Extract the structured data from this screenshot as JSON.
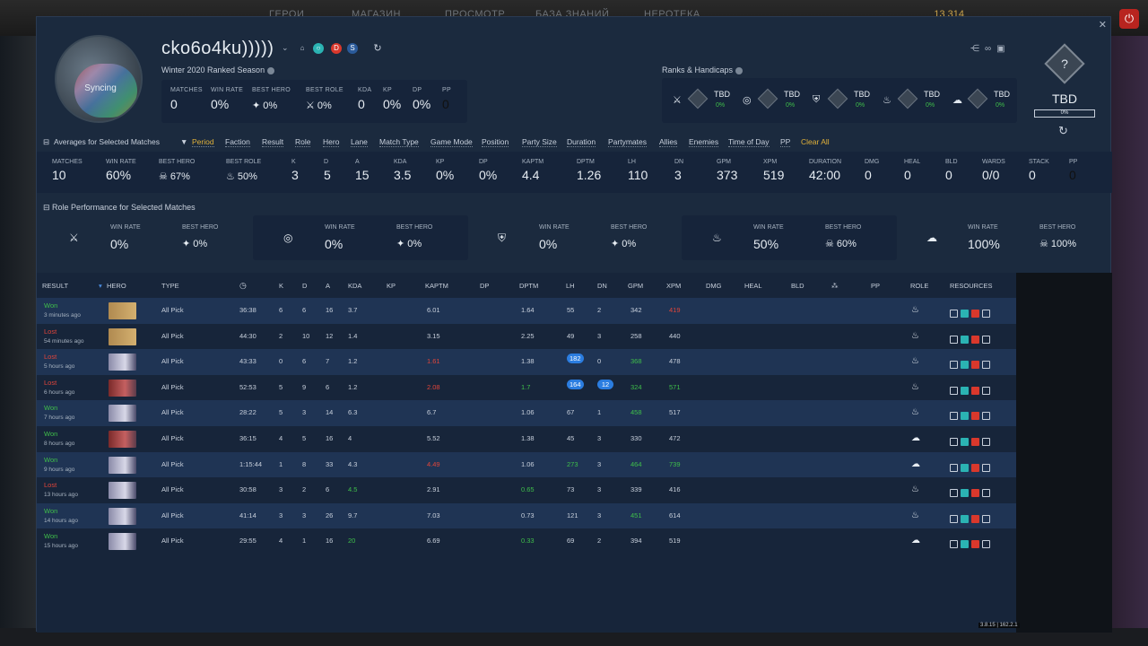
{
  "game_nav": {
    "items": [
      "ГЕРОИ",
      "МАГАЗИН",
      "ПРОСМОТР",
      "БАЗА ЗНАНИЙ",
      "НЕРОТЕКА"
    ],
    "gold": "13 314"
  },
  "profile": {
    "username": "cko6o4ku)))))",
    "avatar_label": "Syncing",
    "season": "Winter 2020 Ranked Season",
    "stats": [
      {
        "label": "MATCHES",
        "value": "0"
      },
      {
        "label": "WIN RATE",
        "value": "0%"
      },
      {
        "label": "BEST HERO",
        "value": "0%"
      },
      {
        "label": "BEST ROLE",
        "value": "0%"
      },
      {
        "label": "KDA",
        "value": "0"
      },
      {
        "label": "KP",
        "value": "0%"
      },
      {
        "label": "DP",
        "value": "0%"
      },
      {
        "label": "PP",
        "value": "0"
      }
    ]
  },
  "ranks": {
    "title": "Ranks & Handicaps",
    "items": [
      {
        "icon": "carry",
        "tier": "TBD",
        "pct": "0%"
      },
      {
        "icon": "mid",
        "tier": "TBD",
        "pct": "0%"
      },
      {
        "icon": "offlane",
        "tier": "TBD",
        "pct": "0%"
      },
      {
        "icon": "support",
        "tier": "TBD",
        "pct": "0%"
      },
      {
        "icon": "hard-support",
        "tier": "TBD",
        "pct": "0%"
      }
    ],
    "overall_tier": "TBD",
    "overall_pct": "0%"
  },
  "filters": {
    "section_title": "Averages for Selected Matches",
    "items": [
      "Period",
      "Faction",
      "Result",
      "Role",
      "Hero",
      "Lane",
      "Match Type",
      "Game Mode",
      "Position",
      "Party Size",
      "Duration",
      "Partymates",
      "Allies",
      "Enemies",
      "Time of Day",
      "PP"
    ],
    "clear_label": "Clear All"
  },
  "averages": [
    {
      "label": "MATCHES",
      "value": "10"
    },
    {
      "label": "WIN RATE",
      "value": "60%"
    },
    {
      "label": "BEST HERO",
      "value": "67%"
    },
    {
      "label": "BEST ROLE",
      "value": "50%"
    },
    {
      "label": "K",
      "value": "3"
    },
    {
      "label": "D",
      "value": "5"
    },
    {
      "label": "A",
      "value": "15"
    },
    {
      "label": "KDA",
      "value": "3.5"
    },
    {
      "label": "KP",
      "value": "0%"
    },
    {
      "label": "DP",
      "value": "0%"
    },
    {
      "label": "KAPTM",
      "value": "4.4"
    },
    {
      "label": "DPTM",
      "value": "1.26"
    },
    {
      "label": "LH",
      "value": "110"
    },
    {
      "label": "DN",
      "value": "3"
    },
    {
      "label": "GPM",
      "value": "373"
    },
    {
      "label": "XPM",
      "value": "519"
    },
    {
      "label": "DURATION",
      "value": "42:00"
    },
    {
      "label": "DMG",
      "value": "0"
    },
    {
      "label": "HEAL",
      "value": "0"
    },
    {
      "label": "BLD",
      "value": "0"
    },
    {
      "label": "WARDS",
      "value": "0/0"
    },
    {
      "label": "STACK",
      "value": "0"
    },
    {
      "label": "PP",
      "value": "0"
    }
  ],
  "role_performance": {
    "title": "Role Performance for Selected Matches",
    "win_rate_label": "WIN RATE",
    "best_hero_label": "BEST HERO",
    "roles": [
      {
        "win_rate": "0%",
        "best_hero": "0%"
      },
      {
        "win_rate": "0%",
        "best_hero": "0%"
      },
      {
        "win_rate": "0%",
        "best_hero": "0%"
      },
      {
        "win_rate": "50%",
        "best_hero": "60%"
      },
      {
        "win_rate": "100%",
        "best_hero": "100%"
      }
    ]
  },
  "table": {
    "headers": {
      "result": "RESULT",
      "hero": "HERO",
      "type": "TYPE",
      "k": "K",
      "d": "D",
      "a": "A",
      "kda": "KDA",
      "kp": "KP",
      "kaptm": "KAPTM",
      "dp": "DP",
      "dptm": "DPTM",
      "lh": "LH",
      "dn": "DN",
      "gpm": "GPM",
      "xpm": "XPM",
      "dmg": "DMG",
      "heal": "HEAL",
      "bld": "BLD",
      "pp": "PP",
      "role": "ROLE",
      "resources": "RESOURCES"
    },
    "rows": [
      {
        "result": "Won",
        "ago": "3 minutes ago",
        "type": "All Pick",
        "time": "36:38",
        "k": "6",
        "d": "6",
        "a": "16",
        "kda": "3.7",
        "kaptm": "6.01",
        "dptm": "1.64",
        "lh": "55",
        "dn": "2",
        "gpm": "342",
        "xpm": "419"
      },
      {
        "result": "Lost",
        "ago": "54 minutes ago",
        "type": "All Pick",
        "time": "44:30",
        "k": "2",
        "d": "10",
        "a": "12",
        "kda": "1.4",
        "kaptm": "3.15",
        "dptm": "2.25",
        "lh": "49",
        "dn": "3",
        "gpm": "258",
        "xpm": "440"
      },
      {
        "result": "Lost",
        "ago": "5 hours ago",
        "type": "All Pick",
        "time": "43:33",
        "k": "0",
        "d": "6",
        "a": "7",
        "kda": "1.2",
        "kaptm": "1.61",
        "dptm": "1.38",
        "lh": "182",
        "dn": "0",
        "gpm": "368",
        "xpm": "478"
      },
      {
        "result": "Lost",
        "ago": "6 hours ago",
        "type": "All Pick",
        "time": "52:53",
        "k": "5",
        "d": "9",
        "a": "6",
        "kda": "1.2",
        "kaptm": "2.08",
        "dptm": "1.7",
        "lh": "164",
        "dn": "12",
        "gpm": "324",
        "xpm": "571"
      },
      {
        "result": "Won",
        "ago": "7 hours ago",
        "type": "All Pick",
        "time": "28:22",
        "k": "5",
        "d": "3",
        "a": "14",
        "kda": "6.3",
        "kaptm": "6.7",
        "dptm": "1.06",
        "lh": "67",
        "dn": "1",
        "gpm": "458",
        "xpm": "517"
      },
      {
        "result": "Won",
        "ago": "8 hours ago",
        "type": "All Pick",
        "time": "36:15",
        "k": "4",
        "d": "5",
        "a": "16",
        "kda": "4",
        "kaptm": "5.52",
        "dptm": "1.38",
        "lh": "45",
        "dn": "3",
        "gpm": "330",
        "xpm": "472"
      },
      {
        "result": "Won",
        "ago": "9 hours ago",
        "type": "All Pick",
        "time": "1:15:44",
        "k": "1",
        "d": "8",
        "a": "33",
        "kda": "4.3",
        "kaptm": "4.49",
        "dptm": "1.06",
        "lh": "273",
        "dn": "3",
        "gpm": "464",
        "xpm": "739"
      },
      {
        "result": "Lost",
        "ago": "13 hours ago",
        "type": "All Pick",
        "time": "30:58",
        "k": "3",
        "d": "2",
        "a": "6",
        "kda": "4.5",
        "kaptm": "2.91",
        "dptm": "0.65",
        "lh": "73",
        "dn": "3",
        "gpm": "339",
        "xpm": "416"
      },
      {
        "result": "Won",
        "ago": "14 hours ago",
        "type": "All Pick",
        "time": "41:14",
        "k": "3",
        "d": "3",
        "a": "26",
        "kda": "9.7",
        "kaptm": "7.03",
        "dptm": "0.73",
        "lh": "121",
        "dn": "3",
        "gpm": "451",
        "xpm": "614"
      },
      {
        "result": "Won",
        "ago": "15 hours ago",
        "type": "All Pick",
        "time": "29:55",
        "k": "4",
        "d": "1",
        "a": "16",
        "kda": "20",
        "kaptm": "6.69",
        "dptm": "0.33",
        "lh": "69",
        "dn": "2",
        "gpm": "394",
        "xpm": "519"
      }
    ]
  },
  "version": "3.8.15 | 162.2.1",
  "colors": {
    "won": "#3fbf4a",
    "lost": "#e0453a",
    "accent": "#e0b13a",
    "pill": "#2b7de0",
    "panel": "#1b2a3e"
  }
}
